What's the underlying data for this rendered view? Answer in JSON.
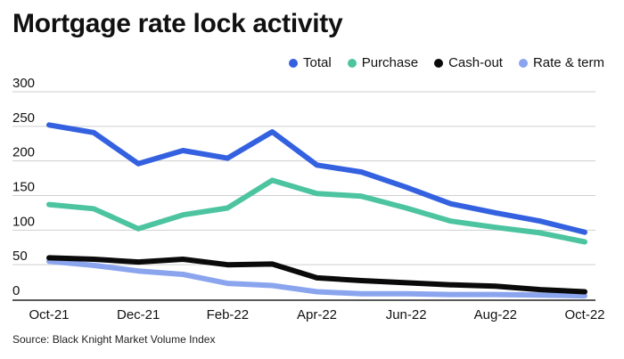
{
  "title": "Mortgage rate lock activity",
  "source": "Source: Black Knight Market Volume Index",
  "chart_data": {
    "type": "line",
    "title": "Mortgage rate lock activity",
    "x": [
      "Oct-21",
      "Nov-21",
      "Dec-21",
      "Jan-22",
      "Feb-22",
      "Mar-22",
      "Apr-22",
      "May-22",
      "Jun-22",
      "Jul-22",
      "Aug-22",
      "Sep-22",
      "Oct-22"
    ],
    "x_tick_labels": [
      "Oct-21",
      "Dec-21",
      "Feb-22",
      "Apr-22",
      "Jun-22",
      "Aug-22",
      "Oct-22"
    ],
    "ylim": [
      0,
      300
    ],
    "yticks": [
      0,
      50,
      100,
      150,
      200,
      250,
      300
    ],
    "grid": "horizontal",
    "legend_position": "top-right",
    "series": [
      {
        "name": "Total",
        "color": "#3461e0",
        "values": [
          252,
          241,
          196,
          215,
          204,
          242,
          194,
          184,
          162,
          138,
          125,
          113,
          97
        ]
      },
      {
        "name": "Purchase",
        "color": "#4dc4a0",
        "values": [
          137,
          131,
          102,
          122,
          132,
          172,
          153,
          149,
          132,
          113,
          104,
          96,
          83
        ]
      },
      {
        "name": "Cash-out",
        "color": "#0a0a0a",
        "values": [
          60,
          58,
          54,
          58,
          50,
          51,
          31,
          27,
          24,
          21,
          19,
          14,
          11
        ]
      },
      {
        "name": "Rate & term",
        "color": "#8aa4ee",
        "values": [
          55,
          49,
          41,
          36,
          23,
          20,
          11,
          8,
          8,
          7,
          7,
          6,
          5
        ]
      }
    ]
  }
}
